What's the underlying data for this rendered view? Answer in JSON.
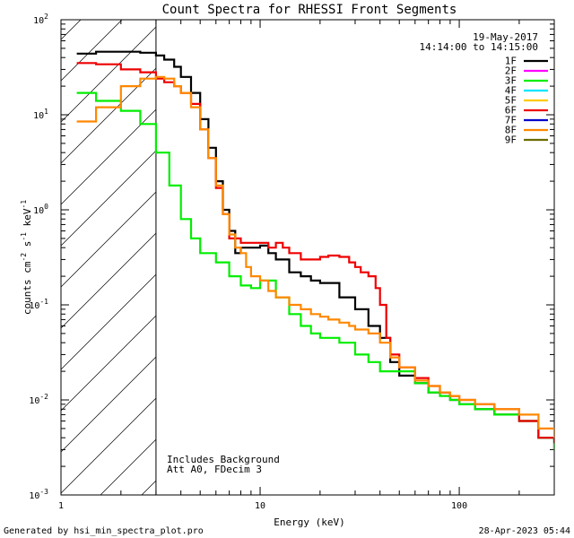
{
  "chart_data": {
    "type": "line",
    "title": "Count Spectra for RHESSI Front Segments",
    "date": "19-May-2017",
    "time_range": "14:14:00 to 14:15:00",
    "xlabel": "Energy (keV)",
    "ylabel_parts": [
      "counts cm",
      "-2",
      " s",
      "-1",
      " keV",
      "-1"
    ],
    "x_scale": "log",
    "y_scale": "log",
    "xlim": [
      1.0,
      300.0
    ],
    "ylim": [
      0.001,
      100.0
    ],
    "x_tick_labels": [
      {
        "value": 1,
        "label": "1"
      },
      {
        "value": 10,
        "label": "10"
      },
      {
        "value": 100,
        "label": "100"
      }
    ],
    "y_tick_labels": [
      {
        "value": 0.001,
        "base": "10",
        "exp": "-3"
      },
      {
        "value": 0.01,
        "base": "10",
        "exp": "-2"
      },
      {
        "value": 0.1,
        "base": "10",
        "exp": "-1"
      },
      {
        "value": 1,
        "base": "10",
        "exp": "0"
      },
      {
        "value": 10,
        "base": "10",
        "exp": "1"
      },
      {
        "value": 100,
        "base": "10",
        "exp": "2"
      }
    ],
    "hatched_region_keV": [
      1.0,
      3.0
    ],
    "annotations": [
      "Includes Background",
      "Att A0, FDecim 3"
    ],
    "legend": [
      {
        "name": "1F",
        "color": "#000000"
      },
      {
        "name": "2F",
        "color": "#ff00ff"
      },
      {
        "name": "3F",
        "color": "#00ee00"
      },
      {
        "name": "4F",
        "color": "#00e5ff"
      },
      {
        "name": "5F",
        "color": "#ffcc00"
      },
      {
        "name": "6F",
        "color": "#ee0000"
      },
      {
        "name": "7F",
        "color": "#0000cc"
      },
      {
        "name": "8F",
        "color": "#ff8800"
      },
      {
        "name": "9F",
        "color": "#6b6b00"
      }
    ],
    "series": [
      {
        "name": "1F",
        "color": "#000000",
        "x": [
          1.2,
          1.5,
          2.0,
          2.5,
          3.0,
          3.3,
          3.7,
          4.0,
          4.5,
          5.0,
          5.5,
          6.0,
          6.5,
          7.0,
          7.5,
          8.0,
          9.0,
          10.0,
          11.0,
          12.0,
          14.0,
          16.0,
          18.0,
          20.0,
          25.0,
          30.0,
          35.0,
          40.0,
          45.0,
          50.0,
          60.0,
          70.0,
          80.0,
          90.0,
          100.0,
          120.0,
          150.0,
          200.0,
          250.0,
          300.0
        ],
        "values": [
          44,
          46,
          46,
          45,
          42,
          38,
          32,
          25,
          17,
          9,
          4.5,
          2.0,
          1.0,
          0.6,
          0.35,
          0.4,
          0.4,
          0.42,
          0.35,
          0.3,
          0.22,
          0.2,
          0.18,
          0.17,
          0.12,
          0.09,
          0.06,
          0.045,
          0.025,
          0.018,
          0.015,
          0.012,
          0.012,
          0.01,
          0.009,
          0.008,
          0.007,
          0.006,
          0.004,
          0.003
        ]
      },
      {
        "name": "3F",
        "color": "#00ee00",
        "x": [
          1.2,
          1.5,
          2.0,
          2.5,
          3.0,
          3.5,
          4.0,
          4.5,
          5.0,
          6.0,
          7.0,
          8.0,
          9.0,
          10.0,
          12.0,
          14.0,
          16.0,
          18.0,
          20.0,
          25.0,
          30.0,
          35.0,
          40.0,
          45.0,
          50.0,
          60.0,
          70.0,
          80.0,
          90.0,
          100.0,
          120.0,
          150.0,
          200.0,
          250.0,
          300.0
        ],
        "values": [
          17,
          14,
          11,
          8,
          4,
          1.8,
          0.8,
          0.5,
          0.35,
          0.28,
          0.2,
          0.16,
          0.15,
          0.18,
          0.12,
          0.08,
          0.06,
          0.05,
          0.045,
          0.04,
          0.03,
          0.025,
          0.02,
          0.02,
          0.02,
          0.015,
          0.012,
          0.011,
          0.01,
          0.009,
          0.008,
          0.007,
          0.006,
          0.004,
          0.003
        ]
      },
      {
        "name": "6F",
        "color": "#ee0000",
        "x": [
          1.2,
          1.5,
          2.0,
          2.5,
          3.0,
          3.3,
          3.7,
          4.0,
          4.5,
          5.0,
          5.5,
          6.0,
          6.5,
          7.0,
          8.0,
          9.0,
          10.0,
          11.0,
          12.0,
          13.0,
          14.0,
          16.0,
          18.0,
          20.0,
          22.0,
          25.0,
          28.0,
          30.0,
          32.0,
          35.0,
          38.0,
          40.0,
          43.0,
          45.0,
          50.0,
          60.0,
          70.0,
          80.0,
          90.0,
          100.0,
          120.0,
          150.0,
          200.0,
          250.0,
          300.0
        ],
        "values": [
          35,
          34,
          30,
          28,
          24,
          22,
          20,
          17,
          13,
          7,
          3.5,
          1.7,
          0.9,
          0.5,
          0.45,
          0.45,
          0.45,
          0.4,
          0.45,
          0.4,
          0.35,
          0.3,
          0.3,
          0.32,
          0.33,
          0.32,
          0.28,
          0.25,
          0.22,
          0.2,
          0.15,
          0.1,
          0.045,
          0.03,
          0.022,
          0.017,
          0.014,
          0.012,
          0.011,
          0.01,
          0.009,
          0.008,
          0.006,
          0.004,
          0.0035
        ]
      },
      {
        "name": "8F",
        "color": "#ff8800",
        "x": [
          1.2,
          1.5,
          2.0,
          2.5,
          3.0,
          3.3,
          3.7,
          4.0,
          4.5,
          5.0,
          5.5,
          6.0,
          6.5,
          7.0,
          7.5,
          8.0,
          8.5,
          9.0,
          10.0,
          11.0,
          12.0,
          14.0,
          16.0,
          18.0,
          20.0,
          22.0,
          25.0,
          28.0,
          30.0,
          35.0,
          40.0,
          45.0,
          50.0,
          60.0,
          70.0,
          80.0,
          90.0,
          100.0,
          120.0,
          150.0,
          200.0,
          250.0,
          300.0
        ],
        "values": [
          8.5,
          12,
          20,
          24,
          25,
          24,
          20,
          17,
          12,
          7,
          3.5,
          1.8,
          0.9,
          0.55,
          0.4,
          0.35,
          0.25,
          0.2,
          0.18,
          0.14,
          0.12,
          0.1,
          0.09,
          0.08,
          0.075,
          0.07,
          0.065,
          0.06,
          0.055,
          0.05,
          0.04,
          0.028,
          0.022,
          0.016,
          0.014,
          0.012,
          0.011,
          0.01,
          0.009,
          0.008,
          0.007,
          0.005,
          0.004
        ]
      }
    ]
  },
  "footer": {
    "left": "Generated by hsi_min_spectra_plot.pro",
    "right": "28-Apr-2023 05:44"
  }
}
